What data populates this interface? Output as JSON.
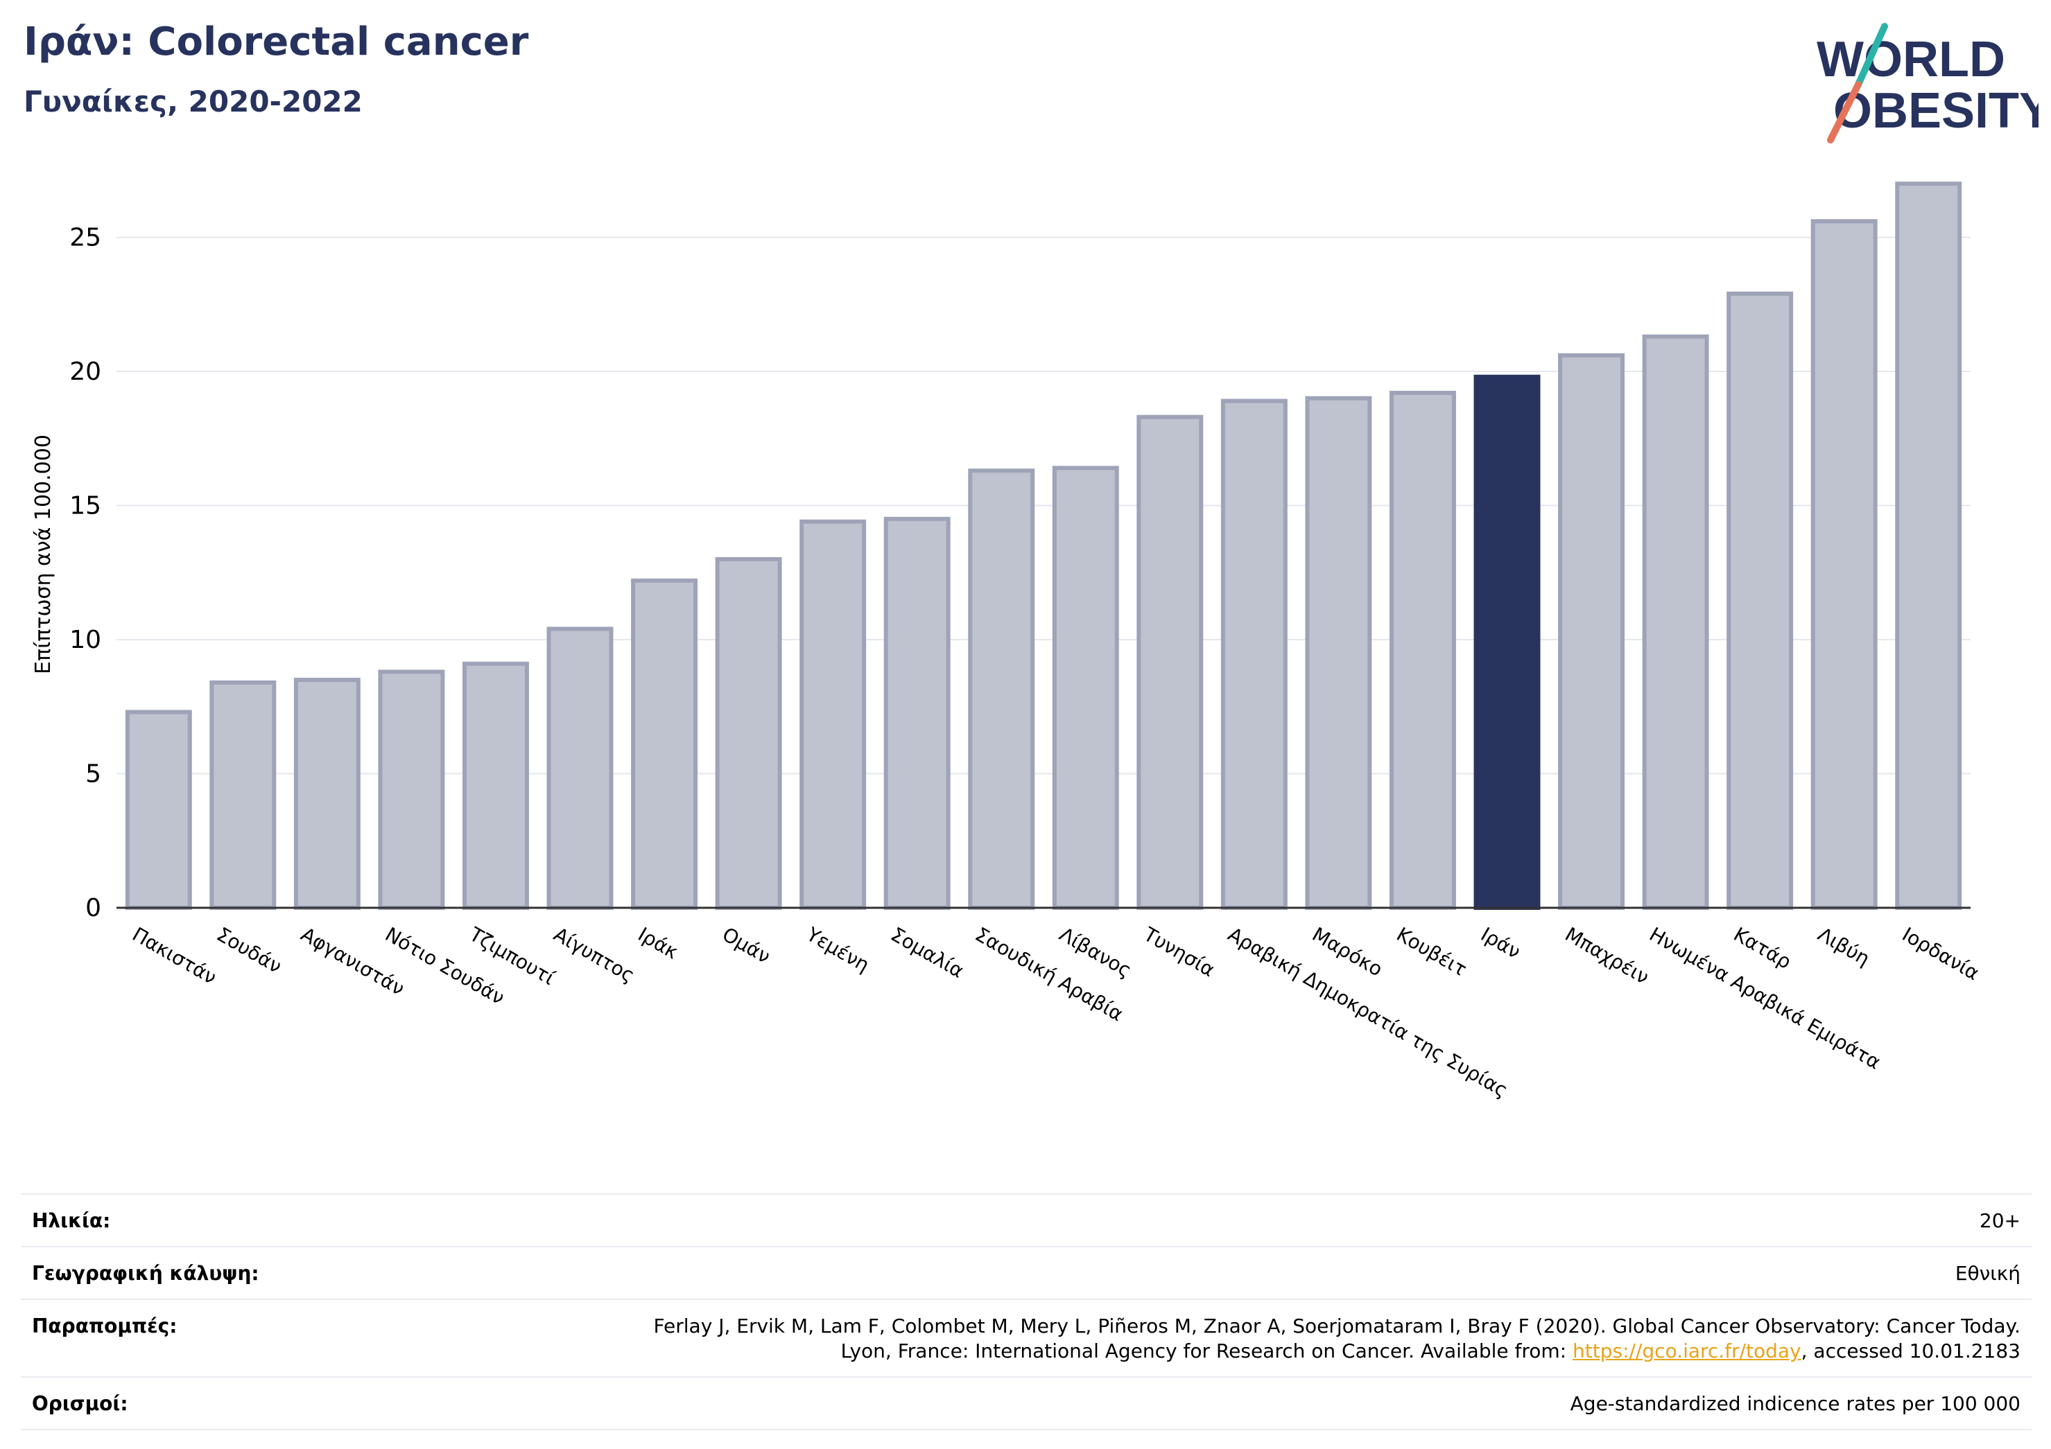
{
  "header": {
    "title": "Ιράν: Colorectal cancer",
    "subtitle": "Γυναίκες, 2020-2022"
  },
  "logo": {
    "line1": "WORLD",
    "line2": "OBESITY",
    "colors": {
      "text": "#27335e",
      "slash_top": "#2bb3a9",
      "slash_bottom": "#e5735a"
    }
  },
  "colors": {
    "bar_fill": "#bfc2cf",
    "bar_stroke": "#9ea3b8",
    "highlight": "#28335e",
    "grid": "#e6e6ee",
    "axis": "#333333"
  },
  "chart_data": {
    "type": "bar",
    "ylabel": "Επίπτωση ανά 100.000",
    "ylim": [
      0,
      27.5
    ],
    "yticks": [
      0,
      5,
      10,
      15,
      20,
      25
    ],
    "grid": true,
    "highlight_category": "Ιράν",
    "categories": [
      "Πακιστάν",
      "Σουδάν",
      "Αφγανιστάν",
      "Νότιο Σουδάν",
      "Τζιμπουτί",
      "Αίγυπτος",
      "Ιράκ",
      "Ομάν",
      "Υεμένη",
      "Σομαλία",
      "Σαουδική Αραβία",
      "Λίβανος",
      "Τυνησία",
      "Αραβική Δημοκρατία της Συρίας",
      "Μαρόκο",
      "Κουβέιτ",
      "Ιράν",
      "Μπαχρέιν",
      "Ηνωμένα Αραβικά Εμιράτα",
      "Κατάρ",
      "Λιβύη",
      "Ιορδανία"
    ],
    "values": [
      7.3,
      8.4,
      8.5,
      8.8,
      9.1,
      10.4,
      12.2,
      13.0,
      14.4,
      14.5,
      16.3,
      16.4,
      18.3,
      18.9,
      19.0,
      19.2,
      19.8,
      20.6,
      21.3,
      22.9,
      25.6,
      27.0
    ]
  },
  "meta": [
    {
      "label": "Ηλικία:",
      "value": "20+"
    },
    {
      "label": "Γεωγραφική κάλυψη:",
      "value": "Εθνική"
    },
    {
      "label": "Παραπομπές:",
      "value_line1": "Ferlay J, Ervik M, Lam F, Colombet M, Mery L, Piñeros M, Znaor A, Soerjomataram I, Bray F (2020). Global Cancer Observatory: Cancer Today.",
      "value_line2_prefix": "Lyon, France: International Agency for Research on Cancer. Available from: ",
      "link": "https://gco.iarc.fr/today",
      "value_line2_suffix": ", accessed 10.01.2183"
    },
    {
      "label": "Ορισμοί:",
      "value": "Age-standardized indicence rates per 100 000"
    }
  ]
}
